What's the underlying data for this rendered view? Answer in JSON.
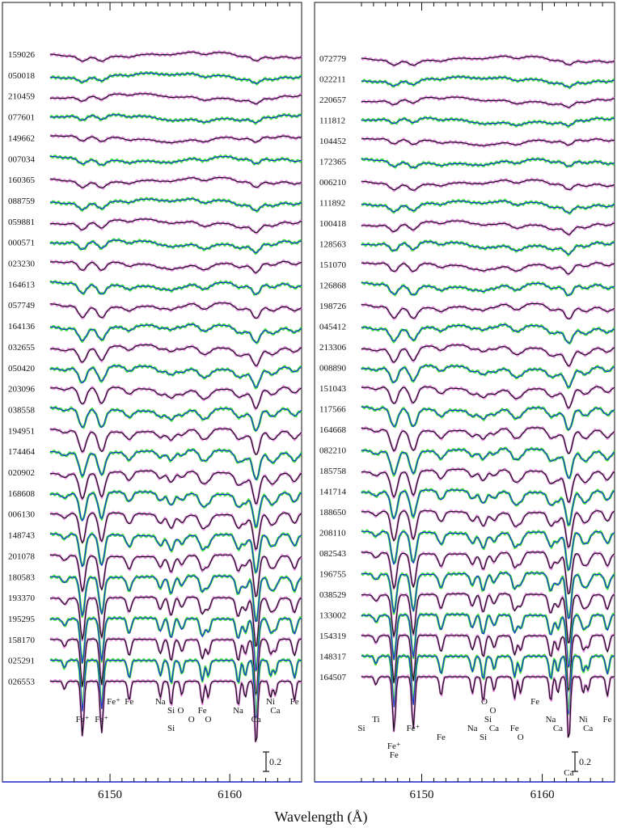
{
  "chart_data": {
    "type": "line",
    "xlabel": "Wavelength (Å)",
    "colors": {
      "observed": "#ea7fe6",
      "observed_alt": "#2adb2a",
      "model": "#111111",
      "model_alt": "#1a2fd6",
      "masked": "#9aa89a",
      "axis_line": "#1b22c8"
    },
    "panels": [
      {
        "name": "left",
        "xlim": [
          6145,
          6166
        ],
        "xticks": [
          6150,
          6160
        ],
        "xtick_labels": [
          "6150",
          "6160"
        ],
        "stars": [
          "159026",
          "050018",
          "210459",
          "077601",
          "149662",
          "007034",
          "160365",
          "088759",
          "059881",
          "000571",
          "023230",
          "164613",
          "057749",
          "164136",
          "032655",
          "050420",
          "203096",
          "038558",
          "194951",
          "174464",
          "020902",
          "168608",
          "006130",
          "148743",
          "201078",
          "180583",
          "193370",
          "195295",
          "158170",
          "025291",
          "026553"
        ],
        "scale_bar": {
          "value": 0.2,
          "label": "0.2"
        },
        "line_labels": [
          {
            "text": "Fe⁺",
            "wavelength": 6147.7,
            "row": 0
          },
          {
            "text": "Fe⁺",
            "wavelength": 6149.3,
            "row": 0
          },
          {
            "text": "Fe⁺",
            "wavelength": 6150.3,
            "row": -2
          },
          {
            "text": "Fe",
            "wavelength": 6151.6,
            "row": -2
          },
          {
            "text": "Na",
            "wavelength": 6154.2,
            "row": -2
          },
          {
            "text": "Si",
            "wavelength": 6155.1,
            "row": -1
          },
          {
            "text": "O",
            "wavelength": 6155.9,
            "row": -1
          },
          {
            "text": "Si",
            "wavelength": 6155.1,
            "row": 1
          },
          {
            "text": "O",
            "wavelength": 6156.8,
            "row": 0
          },
          {
            "text": "Fe",
            "wavelength": 6157.7,
            "row": -1
          },
          {
            "text": "O",
            "wavelength": 6158.2,
            "row": 0
          },
          {
            "text": "Na",
            "wavelength": 6160.7,
            "row": -1
          },
          {
            "text": "Ca",
            "wavelength": 6162.2,
            "row": 0
          },
          {
            "text": "Ni",
            "wavelength": 6163.4,
            "row": -2
          },
          {
            "text": "Ca",
            "wavelength": 6163.8,
            "row": -1
          },
          {
            "text": "Fe",
            "wavelength": 6165.4,
            "row": -2
          }
        ]
      },
      {
        "name": "right",
        "xlim": [
          6145,
          6166
        ],
        "xticks": [
          6150,
          6160
        ],
        "xtick_labels": [
          "6150",
          "6160"
        ],
        "stars": [
          "072779",
          "022211",
          "220657",
          "111812",
          "104452",
          "172365",
          "006210",
          "111892",
          "100418",
          "128563",
          "151070",
          "126868",
          "198726",
          "045412",
          "213306",
          "008890",
          "151043",
          "117566",
          "164668",
          "082210",
          "185758",
          "141714",
          "188650",
          "208110",
          "082543",
          "196755",
          "038529",
          "133002",
          "154319",
          "148317",
          "164507"
        ],
        "scale_bar": {
          "value": 0.2,
          "label": "0.2"
        },
        "line_labels": [
          {
            "text": "Si",
            "wavelength": 6145.0,
            "row": 1
          },
          {
            "text": "Ti",
            "wavelength": 6146.2,
            "row": 0
          },
          {
            "text": "Fe⁺",
            "wavelength": 6147.7,
            "row": 3
          },
          {
            "text": "Fe",
            "wavelength": 6147.7,
            "row": 4
          },
          {
            "text": "Fe⁺",
            "wavelength": 6149.3,
            "row": 1
          },
          {
            "text": "Fe",
            "wavelength": 6151.6,
            "row": 2
          },
          {
            "text": "Na",
            "wavelength": 6154.2,
            "row": 1
          },
          {
            "text": "Si",
            "wavelength": 6155.1,
            "row": 2
          },
          {
            "text": "O",
            "wavelength": 6155.2,
            "row": -2
          },
          {
            "text": "Si",
            "wavelength": 6155.5,
            "row": 0
          },
          {
            "text": "O",
            "wavelength": 6155.9,
            "row": -1
          },
          {
            "text": "Ca",
            "wavelength": 6156.0,
            "row": 1
          },
          {
            "text": "Fe",
            "wavelength": 6157.7,
            "row": 1
          },
          {
            "text": "O",
            "wavelength": 6158.2,
            "row": 2
          },
          {
            "text": "Fe",
            "wavelength": 6159.4,
            "row": -2
          },
          {
            "text": "Na",
            "wavelength": 6160.7,
            "row": 0
          },
          {
            "text": "Ca",
            "wavelength": 6161.3,
            "row": 1
          },
          {
            "text": "Ni",
            "wavelength": 6163.4,
            "row": 0
          },
          {
            "text": "Ca",
            "wavelength": 6163.8,
            "row": 1
          },
          {
            "text": "Fe",
            "wavelength": 6165.4,
            "row": 0
          },
          {
            "text": "Ca",
            "wavelength": 6162.2,
            "row": 6
          }
        ]
      }
    ]
  }
}
